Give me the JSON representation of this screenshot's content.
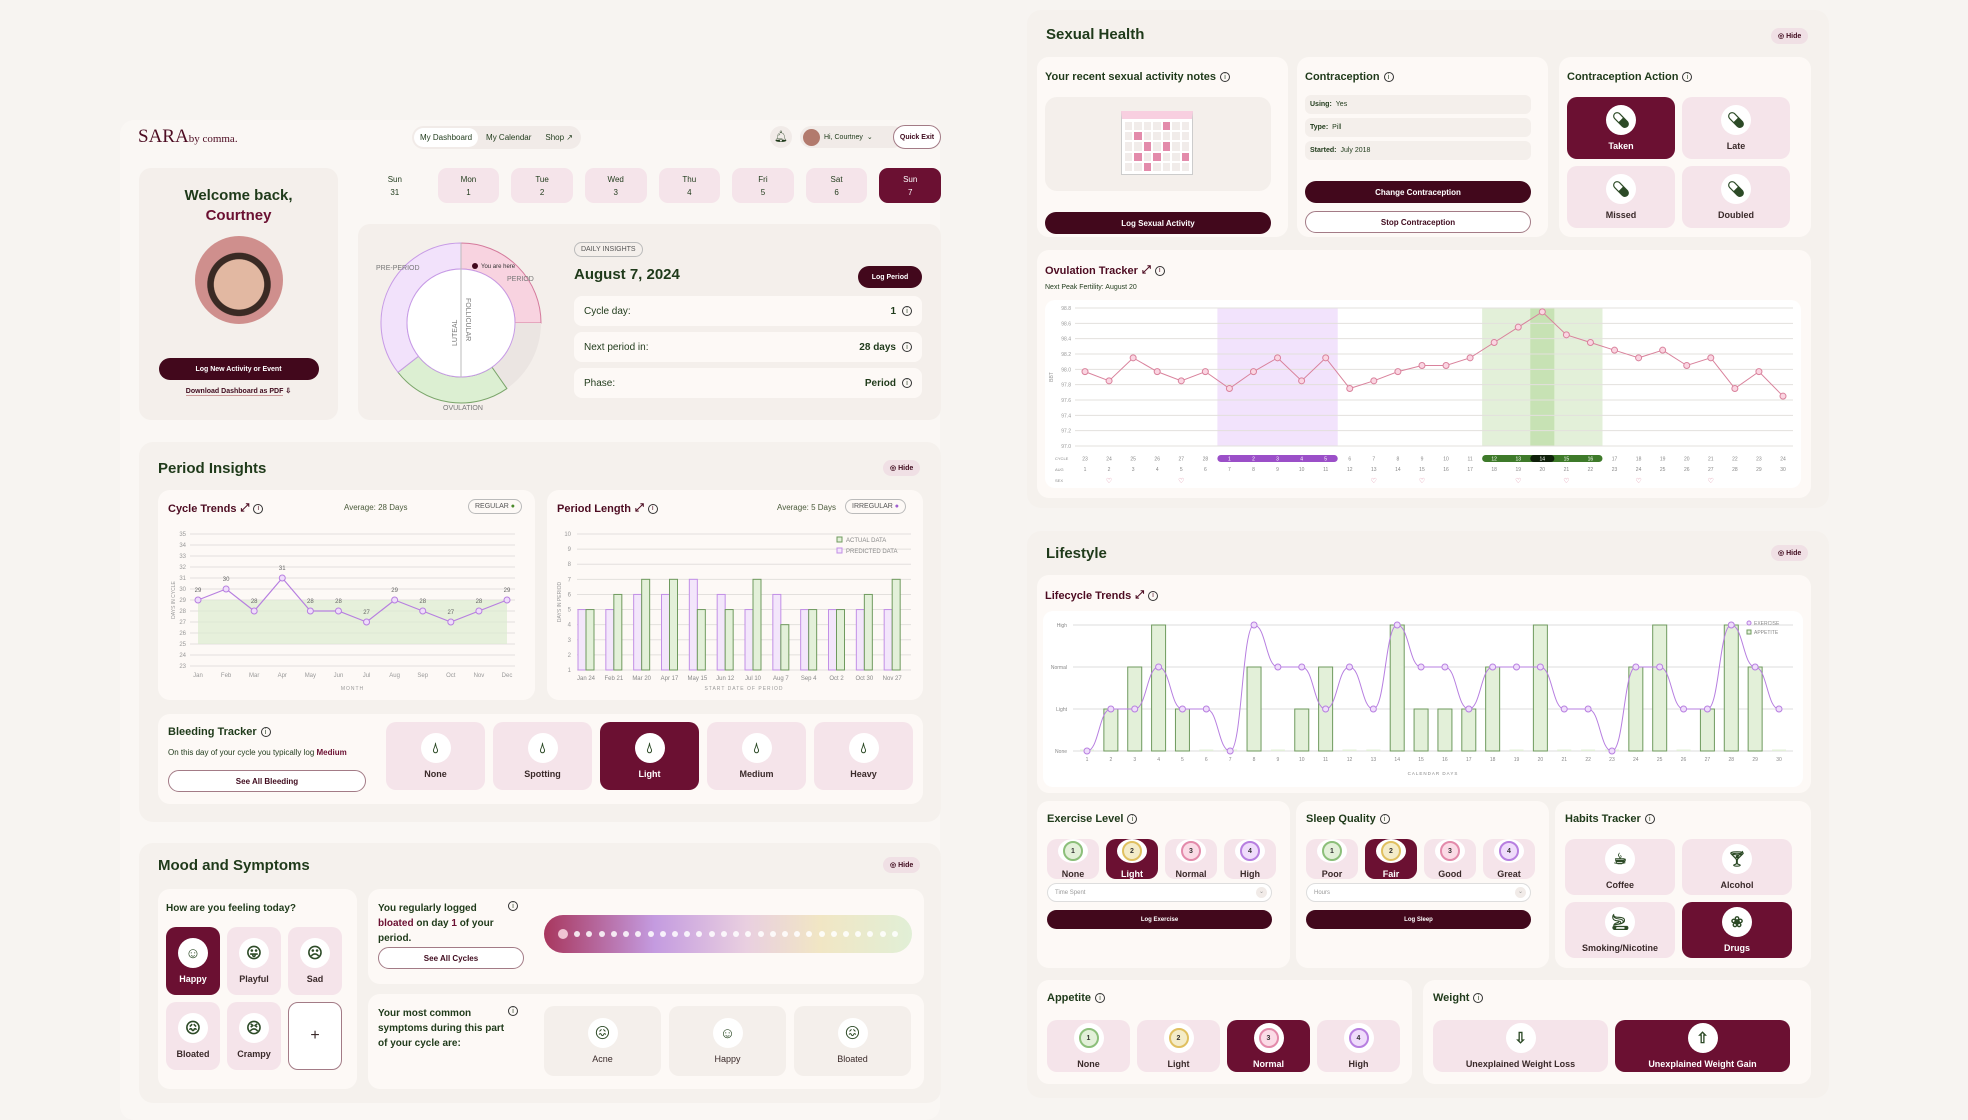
{
  "header": {
    "logo": "SARA",
    "logo_sub": "by comma.",
    "nav": [
      "My Dashboard",
      "My Calendar",
      "Shop ↗"
    ],
    "user": "Hi, Courtney",
    "quick_exit": "Quick Exit"
  },
  "welcome": {
    "line1": "Welcome back,",
    "name": "Courtney",
    "log_btn": "Log New Activity or Event",
    "download": "Download Dashboard as PDF"
  },
  "days": [
    {
      "d": "Sun",
      "n": "31"
    },
    {
      "d": "Mon",
      "n": "1"
    },
    {
      "d": "Tue",
      "n": "2"
    },
    {
      "d": "Wed",
      "n": "3"
    },
    {
      "d": "Thu",
      "n": "4"
    },
    {
      "d": "Fri",
      "n": "5"
    },
    {
      "d": "Sat",
      "n": "6"
    },
    {
      "d": "Sun",
      "n": "7"
    }
  ],
  "cycle_wheel": {
    "pre_period": "PRE-PERIOD",
    "period": "PERIOD",
    "ovulation": "OVULATION",
    "luteal": "LUTEAL",
    "follicular": "FOLLICULAR",
    "you_are_here": "You are here"
  },
  "insights": {
    "badge": "DAILY INSIGHTS",
    "date": "August 7, 2024",
    "log_period": "Log Period",
    "rows": [
      {
        "label": "Cycle day:",
        "value": "1"
      },
      {
        "label": "Next period in:",
        "value": "28 days"
      },
      {
        "label": "Phase:",
        "value": "Period"
      }
    ]
  },
  "period_insights": {
    "title": "Period Insights",
    "hide": "Hide",
    "cycle_trends": {
      "title": "Cycle Trends",
      "average": "Average: 28 Days",
      "badge": "REGULAR"
    },
    "period_length": {
      "title": "Period Length",
      "average": "Average: 5 Days",
      "badge": "IRREGULAR"
    },
    "bleeding": {
      "title": "Bleeding Tracker",
      "text_pre": "On this day of your cycle you typically log ",
      "text_em": "Medium",
      "see_all": "See All Bleeding",
      "options": [
        "None",
        "Spotting",
        "Light",
        "Medium",
        "Heavy"
      ],
      "selected": "Light"
    }
  },
  "mood": {
    "title": "Mood and Symptoms",
    "hide": "Hide",
    "question": "How are you feeling today?",
    "options": [
      "Happy",
      "Playful",
      "Sad",
      "Bloated",
      "Crampy"
    ],
    "add": "+",
    "logged_1": "You regularly logged ",
    "logged_em": "bloated",
    "logged_2": " on day ",
    "logged_day": "1",
    "logged_3": " of your period.",
    "see_cycles": "See All Cycles",
    "common": "Your most common symptoms during this part of your cycle are:",
    "symptoms": [
      "Acne",
      "Happy",
      "Bloated"
    ]
  },
  "sexual_health": {
    "title": "Sexual Health",
    "hide": "Hide",
    "notes_title": "Your recent sexual activity notes",
    "log_btn": "Log Sexual Activity",
    "contraception": {
      "title": "Contraception",
      "rows": [
        {
          "k": "Using:",
          "v": "Yes"
        },
        {
          "k": "Type:",
          "v": "Pill"
        },
        {
          "k": "Started:",
          "v": "July 2018"
        }
      ],
      "change": "Change Contraception",
      "stop": "Stop Contraception"
    },
    "action": {
      "title": "Contraception Action",
      "options": [
        "Taken",
        "Late",
        "Missed",
        "Doubled"
      ],
      "selected": "Taken"
    },
    "ovulation": {
      "title": "Ovulation Tracker",
      "next_peak": "Next Peak Fertility: August 20",
      "row_labels": [
        "CYCLE",
        "AUG",
        "SEX"
      ]
    }
  },
  "lifestyle": {
    "title": "Lifestyle",
    "hide": "Hide",
    "trends_title": "Lifecycle Trends",
    "exercise": {
      "title": "Exercise Level",
      "options": [
        "None",
        "Light",
        "Normal",
        "High"
      ],
      "selected": "Light",
      "placeholder": "Time Spent",
      "log": "Log Exercise"
    },
    "sleep": {
      "title": "Sleep Quality",
      "options": [
        "Poor",
        "Fair",
        "Good",
        "Great"
      ],
      "selected": "Fair",
      "placeholder": "Hours",
      "log": "Log Sleep"
    },
    "habits": {
      "title": "Habits Tracker",
      "options": [
        "Coffee",
        "Alcohol",
        "Smoking/Nicotine",
        "Drugs"
      ],
      "selected": "Drugs"
    },
    "appetite": {
      "title": "Appetite",
      "options": [
        "None",
        "Light",
        "Normal",
        "High"
      ],
      "selected": "Normal"
    },
    "weight": {
      "title": "Weight",
      "options": [
        "Unexplained Weight Loss",
        "Unexplained Weight Gain"
      ],
      "selected": "Unexplained Weight Gain"
    }
  },
  "colors": {
    "maroon": "#6b1032",
    "dark": "#42081c",
    "purple": "#b77fe0",
    "green": "#6f9a5e",
    "pink": "#d9829c"
  },
  "chart_data": [
    {
      "id": "cycle_trends",
      "type": "line",
      "xlabel": "MONTH",
      "ylabel": "DAYS IN CYCLE",
      "ylim": [
        23,
        35
      ],
      "categories": [
        "Jan",
        "Feb",
        "Mar",
        "Apr",
        "May",
        "Jun",
        "Jul",
        "Aug",
        "Sep",
        "Oct",
        "Nov",
        "Dec"
      ],
      "values": [
        29,
        30,
        28,
        31,
        28,
        28,
        27,
        29,
        28,
        27,
        28,
        29
      ],
      "normal_band": [
        25,
        29
      ]
    },
    {
      "id": "period_length",
      "type": "bar",
      "xlabel": "START DATE OF PERIOD",
      "ylabel": "DAYS IN PERIOD",
      "ylim": [
        1,
        10
      ],
      "categories": [
        "Jan 24",
        "Feb 21",
        "Mar 20",
        "Apr 17",
        "May 15",
        "Jun 12",
        "Jul 10",
        "Aug 7",
        "Sep 4",
        "Oct 2",
        "Oct 30",
        "Nov 27"
      ],
      "series": [
        {
          "name": "PREDICTED DATA",
          "values": [
            5,
            5,
            6,
            6,
            7,
            6,
            5,
            6,
            5,
            5,
            5,
            5
          ]
        },
        {
          "name": "ACTUAL DATA",
          "values": [
            5,
            6,
            7,
            7,
            5,
            5,
            7,
            4,
            5,
            5,
            6,
            7
          ]
        }
      ],
      "legend": "top-right"
    },
    {
      "id": "ovulation",
      "type": "line",
      "ylabel": "BBT",
      "ylim": [
        97.0,
        98.8
      ],
      "x": [
        1,
        2,
        3,
        4,
        5,
        6,
        7,
        8,
        9,
        10,
        11,
        12,
        13,
        14,
        15,
        16,
        17,
        18,
        19,
        20,
        21,
        22,
        23,
        24,
        25,
        26,
        27,
        28,
        29,
        30
      ],
      "cycle_days": [
        23,
        24,
        25,
        26,
        27,
        28,
        1,
        2,
        3,
        4,
        5,
        6,
        7,
        8,
        9,
        10,
        11,
        12,
        13,
        14,
        15,
        16,
        17,
        18,
        19,
        20,
        21,
        22,
        23,
        24
      ],
      "values": [
        97.97,
        97.85,
        98.15,
        97.97,
        97.85,
        97.97,
        97.75,
        97.97,
        98.15,
        97.85,
        98.15,
        97.75,
        97.85,
        97.97,
        98.05,
        98.05,
        98.15,
        98.35,
        98.55,
        98.75,
        98.45,
        98.35,
        98.25,
        98.15,
        98.25,
        98.05,
        98.15,
        97.75,
        97.97,
        97.65
      ],
      "period_days": [
        7,
        11
      ],
      "fertile_days": [
        18,
        22
      ],
      "peak_day": 20,
      "sex_days": [
        2,
        5,
        13,
        15,
        19,
        21,
        24,
        27
      ]
    },
    {
      "id": "lifecycle",
      "type": "bar+line",
      "xlabel": "CALENDAR DAYS",
      "levels": [
        "None",
        "Light",
        "Normal",
        "High"
      ],
      "x": [
        1,
        2,
        3,
        4,
        5,
        6,
        7,
        8,
        9,
        10,
        11,
        12,
        13,
        14,
        15,
        16,
        17,
        18,
        19,
        20,
        21,
        22,
        23,
        24,
        25,
        26,
        27,
        28,
        29,
        30
      ],
      "series": [
        {
          "name": "EXERCISE",
          "type": "line",
          "values": [
            0,
            1,
            1,
            2,
            1,
            1,
            0,
            3,
            2,
            2,
            1,
            2,
            1,
            3,
            2,
            2,
            1,
            2,
            2,
            2,
            1,
            1,
            0,
            2,
            2,
            1,
            1,
            3,
            2,
            1
          ]
        },
        {
          "name": "APPETITE",
          "type": "bar",
          "values": [
            0,
            1,
            2,
            3,
            1,
            0,
            0,
            2,
            0,
            1,
            2,
            0,
            0,
            3,
            1,
            1,
            1,
            2,
            0,
            3,
            0,
            0,
            0,
            2,
            3,
            0,
            1,
            3,
            2,
            0
          ]
        }
      ],
      "legend": "top-right"
    }
  ]
}
